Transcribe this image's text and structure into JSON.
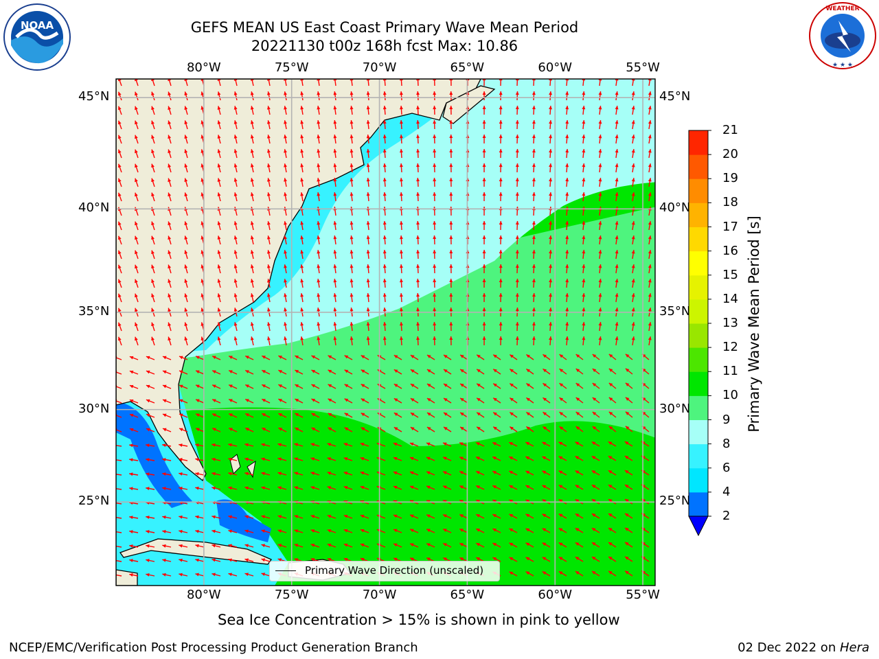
{
  "header": {
    "title_line1": "GEFS MEAN US East Coast Primary Wave Mean Period",
    "title_line2": "20221130 t00z 168h fcst   Max: 10.86"
  },
  "logos": {
    "left": "noaa-logo",
    "right": "national-weather-service-logo",
    "left_text": "NOAA",
    "right_text": "NATIONAL WEATHER SERVICE"
  },
  "map": {
    "lon_labels": [
      "80°W",
      "75°W",
      "70°W",
      "65°W",
      "60°W",
      "55°W"
    ],
    "lat_labels": [
      "45°N",
      "40°N",
      "35°N",
      "30°N",
      "25°N"
    ],
    "extent": {
      "lon_min": -85,
      "lon_max": -54.3,
      "lat_min": 20.3,
      "lat_max": 45.8
    },
    "land_color": "#efedd9",
    "grid_color": "#b3b3b3",
    "arrow_color": "#ff0000",
    "legend_label": "Primary Wave Direction (unscaled)"
  },
  "colorbar": {
    "title": "Primary Wave Mean Period [s]",
    "ticks": [
      "2",
      "4",
      "6",
      "8",
      "9",
      "10",
      "11",
      "12",
      "13",
      "14",
      "15",
      "16",
      "17",
      "18",
      "19",
      "20",
      "21"
    ],
    "colors": [
      "#0073ff",
      "#00e6ff",
      "#37f2ff",
      "#a6fff7",
      "#4ef47e",
      "#00e600",
      "#4ce600",
      "#99e600",
      "#ccf500",
      "#e6f200",
      "#ffff00",
      "#ffd900",
      "#ffb300",
      "#ff8c00",
      "#ff5900",
      "#ff2600",
      "#ff0000"
    ],
    "under_color": "#0000ff"
  },
  "footer": {
    "note": "Sea Ice Concentration > 15% is shown in pink to yellow",
    "left": "NCEP/EMC/Verification Post Processing Product Generation Branch",
    "right_date": "02 Dec 2022 on ",
    "right_host": "Hera"
  }
}
